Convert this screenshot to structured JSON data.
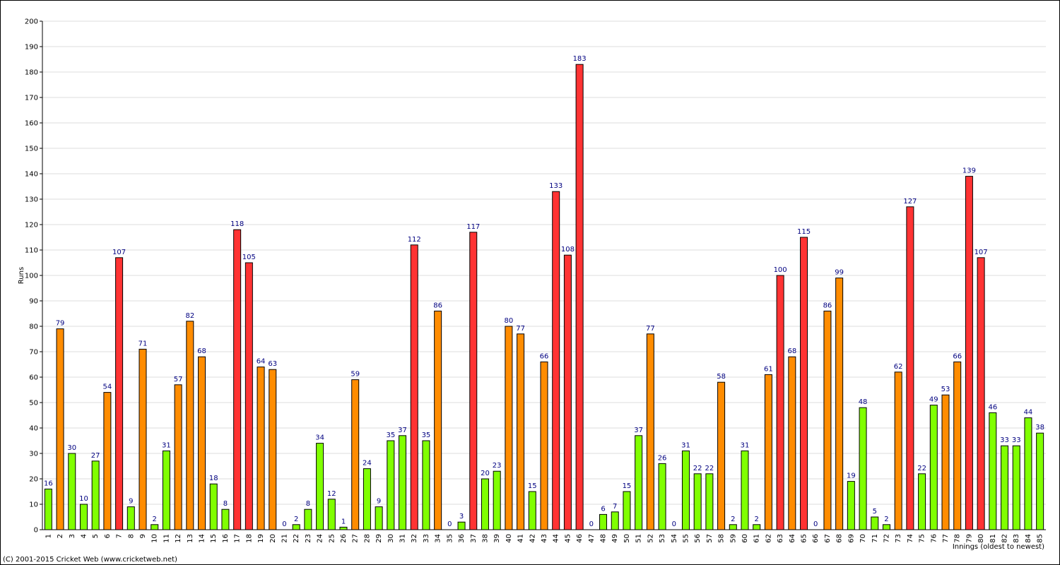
{
  "chart_data": {
    "type": "bar",
    "y_label": "Runs",
    "x_label": "Innings (oldest to newest)",
    "footer": "(C) 2001-2015 Cricket Web (www.cricketweb.net)",
    "categories": [
      1,
      2,
      3,
      4,
      5,
      6,
      7,
      8,
      9,
      10,
      11,
      12,
      13,
      14,
      15,
      16,
      17,
      18,
      19,
      20,
      21,
      22,
      23,
      24,
      25,
      26,
      27,
      28,
      29,
      30,
      31,
      32,
      33,
      34,
      35,
      36,
      37,
      38,
      39,
      40,
      41,
      42,
      43,
      44,
      45,
      46,
      47,
      48,
      49,
      50,
      51,
      52,
      53,
      54,
      55,
      56,
      57,
      58,
      59,
      60,
      61,
      62,
      63,
      64,
      65,
      66,
      67,
      68,
      69,
      70,
      71,
      72,
      73,
      74,
      75,
      76,
      77,
      78,
      79,
      80,
      81,
      82,
      83,
      84,
      85
    ],
    "values": [
      16,
      79,
      30,
      10,
      27,
      54,
      107,
      9,
      71,
      2,
      31,
      57,
      82,
      68,
      18,
      8,
      118,
      105,
      64,
      63,
      0,
      2,
      8,
      34,
      12,
      1,
      59,
      24,
      9,
      35,
      37,
      112,
      35,
      86,
      0,
      3,
      117,
      20,
      23,
      80,
      77,
      15,
      66,
      133,
      108,
      183,
      0,
      6,
      7,
      15,
      37,
      77,
      26,
      0,
      31,
      22,
      22,
      58,
      2,
      31,
      2,
      61,
      100,
      68,
      115,
      0,
      86,
      99,
      19,
      48,
      5,
      2,
      62,
      127,
      22,
      49,
      53,
      66,
      139,
      107,
      46,
      33,
      33,
      44,
      38
    ],
    "colors": [
      "#80ff00",
      "#ff8c00",
      "#80ff00",
      "#80ff00",
      "#80ff00",
      "#ff8c00",
      "#ff3333",
      "#80ff00",
      "#ff8c00",
      "#80ff00",
      "#80ff00",
      "#ff8c00",
      "#ff8c00",
      "#ff8c00",
      "#80ff00",
      "#80ff00",
      "#ff3333",
      "#ff3333",
      "#ff8c00",
      "#ff8c00",
      "#80ff00",
      "#80ff00",
      "#80ff00",
      "#80ff00",
      "#80ff00",
      "#80ff00",
      "#ff8c00",
      "#80ff00",
      "#80ff00",
      "#80ff00",
      "#80ff00",
      "#ff3333",
      "#80ff00",
      "#ff8c00",
      "#80ff00",
      "#80ff00",
      "#ff3333",
      "#80ff00",
      "#80ff00",
      "#ff8c00",
      "#ff8c00",
      "#80ff00",
      "#ff8c00",
      "#ff3333",
      "#ff3333",
      "#ff3333",
      "#80ff00",
      "#80ff00",
      "#80ff00",
      "#80ff00",
      "#80ff00",
      "#ff8c00",
      "#80ff00",
      "#80ff00",
      "#80ff00",
      "#80ff00",
      "#80ff00",
      "#ff8c00",
      "#80ff00",
      "#80ff00",
      "#80ff00",
      "#ff8c00",
      "#ff3333",
      "#ff8c00",
      "#ff3333",
      "#80ff00",
      "#ff8c00",
      "#ff8c00",
      "#80ff00",
      "#80ff00",
      "#80ff00",
      "#80ff00",
      "#ff8c00",
      "#ff3333",
      "#80ff00",
      "#80ff00",
      "#ff8c00",
      "#ff8c00",
      "#ff3333",
      "#ff3333",
      "#80ff00",
      "#80ff00",
      "#80ff00",
      "#80ff00",
      "#80ff00"
    ],
    "ylim": [
      0,
      200
    ],
    "yticks": [
      0,
      10,
      20,
      30,
      40,
      50,
      60,
      70,
      80,
      90,
      100,
      110,
      120,
      130,
      140,
      150,
      160,
      170,
      180,
      190,
      200
    ],
    "grid": true
  }
}
